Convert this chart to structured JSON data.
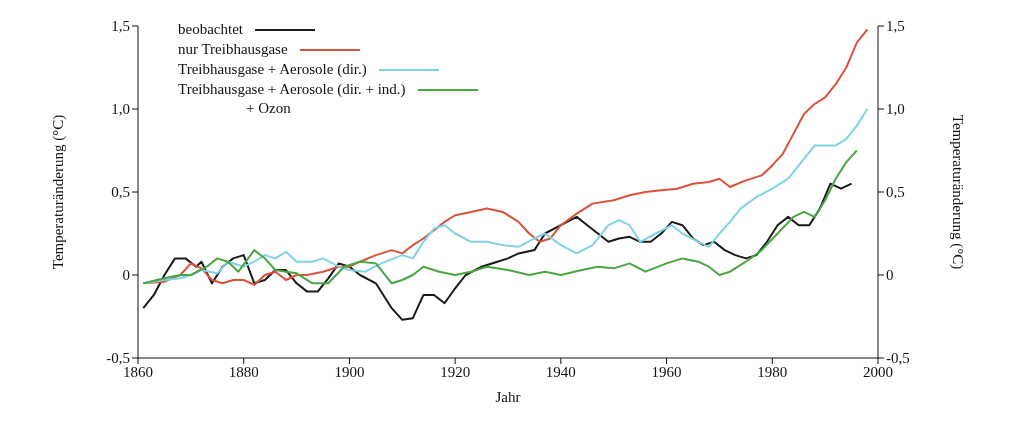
{
  "chart_data": {
    "type": "line",
    "xlabel": "Jahr",
    "ylabel": "Temperaturänderung (°C)",
    "y2label": "Temperaturänderung (°C)",
    "xlim": [
      1860,
      2000
    ],
    "xticks": [
      1860,
      1880,
      1900,
      1920,
      1940,
      1960,
      1980,
      2000
    ],
    "ylim": [
      -0.5,
      1.5
    ],
    "yticks": [
      {
        "value": -0.5,
        "label": "-0,5"
      },
      {
        "value": 0,
        "label": "0"
      },
      {
        "value": 0.5,
        "label": "0,5"
      },
      {
        "value": 1,
        "label": "1,0"
      },
      {
        "value": 1.5,
        "label": "1,5"
      }
    ],
    "y2lim": [
      -0.5,
      1.5
    ],
    "y2ticks": [
      {
        "value": -0.5,
        "label": "-0,5"
      },
      {
        "value": 0,
        "label": "0"
      },
      {
        "value": 0.5,
        "label": "0,5"
      },
      {
        "value": 1,
        "label": "1,0"
      },
      {
        "value": 1.5,
        "label": "1,5"
      }
    ],
    "legend": "top left",
    "grid": false,
    "marker": "none",
    "line_style": "solid",
    "series": [
      {
        "name": "beobachtet",
        "color": "#1a1a1a",
        "x": [
          1861,
          1863,
          1865,
          1867,
          1869,
          1871,
          1872,
          1874,
          1876,
          1878,
          1880,
          1882,
          1884,
          1886,
          1888,
          1890,
          1892,
          1894,
          1896,
          1898,
          1900,
          1902,
          1905,
          1908,
          1910,
          1912,
          1914,
          1916,
          1918,
          1920,
          1922,
          1925,
          1928,
          1930,
          1932,
          1935,
          1937,
          1940,
          1943,
          1945,
          1947,
          1949,
          1951,
          1953,
          1955,
          1957,
          1959,
          1961,
          1963,
          1965,
          1967,
          1969,
          1971,
          1973,
          1975,
          1977,
          1979,
          1981,
          1983,
          1985,
          1987,
          1989,
          1991,
          1993,
          1995
        ],
        "values": [
          -0.2,
          -0.12,
          0.0,
          0.1,
          0.1,
          0.05,
          0.08,
          -0.05,
          0.05,
          0.1,
          0.12,
          -0.05,
          -0.03,
          0.03,
          0.03,
          -0.05,
          -0.1,
          -0.1,
          -0.02,
          0.07,
          0.05,
          0.0,
          -0.05,
          -0.2,
          -0.27,
          -0.26,
          -0.12,
          -0.12,
          -0.17,
          -0.08,
          0.0,
          0.05,
          0.08,
          0.1,
          0.13,
          0.15,
          0.25,
          0.3,
          0.35,
          0.3,
          0.25,
          0.2,
          0.22,
          0.23,
          0.2,
          0.2,
          0.25,
          0.32,
          0.3,
          0.22,
          0.18,
          0.2,
          0.15,
          0.12,
          0.1,
          0.12,
          0.2,
          0.3,
          0.35,
          0.3,
          0.3,
          0.4,
          0.55,
          0.52,
          0.55
        ]
      },
      {
        "name": "nur Treibhausgase",
        "color": "#d9533b",
        "x": [
          1861,
          1865,
          1868,
          1870,
          1872,
          1874,
          1876,
          1878,
          1880,
          1882,
          1884,
          1886,
          1888,
          1890,
          1892,
          1895,
          1898,
          1900,
          1902,
          1905,
          1908,
          1910,
          1912,
          1914,
          1916,
          1918,
          1920,
          1923,
          1926,
          1929,
          1932,
          1934,
          1936,
          1938,
          1940,
          1943,
          1946,
          1950,
          1953,
          1956,
          1959,
          1962,
          1965,
          1968,
          1970,
          1972,
          1975,
          1978,
          1980,
          1982,
          1984,
          1986,
          1988,
          1990,
          1992,
          1994,
          1996,
          1998
        ],
        "values": [
          -0.05,
          -0.04,
          0.0,
          0.07,
          0.04,
          -0.03,
          -0.05,
          -0.03,
          -0.03,
          -0.06,
          0.0,
          0.02,
          -0.03,
          0.0,
          0.0,
          0.02,
          0.05,
          0.05,
          0.08,
          0.12,
          0.15,
          0.13,
          0.18,
          0.22,
          0.27,
          0.32,
          0.36,
          0.38,
          0.4,
          0.38,
          0.32,
          0.25,
          0.2,
          0.22,
          0.3,
          0.37,
          0.43,
          0.45,
          0.48,
          0.5,
          0.51,
          0.52,
          0.55,
          0.56,
          0.58,
          0.53,
          0.57,
          0.6,
          0.66,
          0.73,
          0.85,
          0.97,
          1.03,
          1.07,
          1.15,
          1.25,
          1.4,
          1.48
        ]
      },
      {
        "name": "Treibhausgase + Aerosole (dir.)",
        "color": "#7fd3e6",
        "x": [
          1861,
          1865,
          1868,
          1870,
          1872,
          1875,
          1877,
          1880,
          1882,
          1884,
          1886,
          1888,
          1890,
          1893,
          1895,
          1898,
          1900,
          1903,
          1906,
          1910,
          1912,
          1914,
          1916,
          1918,
          1920,
          1923,
          1926,
          1929,
          1932,
          1935,
          1937,
          1940,
          1943,
          1946,
          1949,
          1951,
          1953,
          1955,
          1958,
          1961,
          1963,
          1966,
          1968,
          1970,
          1972,
          1974,
          1977,
          1980,
          1983,
          1986,
          1988,
          1990,
          1992,
          1994,
          1996,
          1998
        ],
        "values": [
          -0.05,
          -0.03,
          -0.02,
          0.0,
          0.03,
          0.01,
          0.08,
          0.05,
          0.08,
          0.12,
          0.1,
          0.14,
          0.08,
          0.08,
          0.1,
          0.05,
          0.03,
          0.02,
          0.07,
          0.12,
          0.1,
          0.2,
          0.28,
          0.3,
          0.25,
          0.2,
          0.2,
          0.18,
          0.17,
          0.22,
          0.25,
          0.18,
          0.13,
          0.18,
          0.3,
          0.33,
          0.3,
          0.2,
          0.25,
          0.3,
          0.25,
          0.2,
          0.17,
          0.25,
          0.32,
          0.4,
          0.47,
          0.52,
          0.58,
          0.7,
          0.78,
          0.78,
          0.78,
          0.82,
          0.9,
          1.0
        ]
      },
      {
        "name": "Treibhausgase + Aerosole (dir. + ind.)\n+ Ozon",
        "color": "#4aa642",
        "x": [
          1861,
          1865,
          1868,
          1870,
          1873,
          1875,
          1877,
          1879,
          1882,
          1884,
          1886,
          1888,
          1890,
          1893,
          1896,
          1899,
          1902,
          1905,
          1908,
          1910,
          1912,
          1914,
          1917,
          1920,
          1923,
          1926,
          1930,
          1934,
          1937,
          1940,
          1944,
          1947,
          1950,
          1953,
          1956,
          1960,
          1963,
          1966,
          1968,
          1970,
          1972,
          1975,
          1978,
          1981,
          1984,
          1986,
          1988,
          1990,
          1992,
          1994,
          1996
        ],
        "values": [
          -0.05,
          -0.02,
          0.0,
          0.0,
          0.05,
          0.1,
          0.08,
          0.02,
          0.15,
          0.1,
          0.03,
          0.02,
          0.01,
          -0.05,
          -0.05,
          0.05,
          0.08,
          0.07,
          -0.05,
          -0.03,
          0.0,
          0.05,
          0.02,
          0.0,
          0.02,
          0.05,
          0.03,
          0.0,
          0.02,
          0.0,
          0.03,
          0.05,
          0.04,
          0.07,
          0.02,
          0.07,
          0.1,
          0.08,
          0.05,
          0.0,
          0.02,
          0.08,
          0.15,
          0.25,
          0.35,
          0.38,
          0.35,
          0.45,
          0.58,
          0.68,
          0.75
        ]
      }
    ]
  }
}
